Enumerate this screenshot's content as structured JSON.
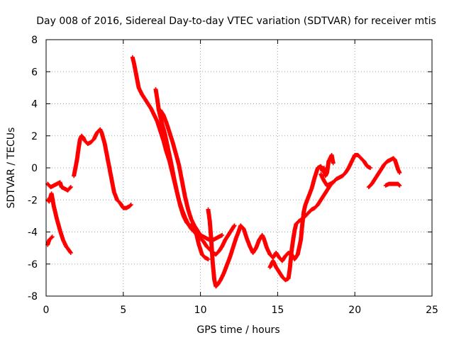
{
  "chart_data": {
    "type": "scatter",
    "title": "Day 008 of 2016, Sidereal Day-to-day VTEC variation (SDTVAR) for receiver mtis",
    "xlabel": "GPS time / hours",
    "ylabel": "SDTVAR / TECUs",
    "xlim": [
      0,
      25
    ],
    "ylim": [
      -8,
      8
    ],
    "xticks": [
      "0",
      "5",
      "10",
      "15",
      "20",
      "25"
    ],
    "yticks": [
      "-8",
      "-6",
      "-4",
      "-2",
      "0",
      "2",
      "4",
      "6",
      "8"
    ],
    "grid": true,
    "marker": "+",
    "color": "#ff0000",
    "series": [
      {
        "name": "s1",
        "points": [
          [
            0.1,
            -2.0
          ],
          [
            0.2,
            -2.1
          ],
          [
            0.35,
            -1.6
          ],
          [
            0.5,
            -2.4
          ],
          [
            0.7,
            -3.2
          ],
          [
            0.9,
            -3.9
          ],
          [
            1.1,
            -4.5
          ],
          [
            1.3,
            -4.9
          ],
          [
            1.6,
            -5.3
          ]
        ]
      },
      {
        "name": "s2",
        "points": [
          [
            0.1,
            -4.8
          ],
          [
            0.2,
            -4.5
          ],
          [
            0.4,
            -4.3
          ]
        ]
      },
      {
        "name": "s3",
        "points": [
          [
            0.1,
            -1.0
          ],
          [
            0.3,
            -1.2
          ],
          [
            0.5,
            -1.1
          ],
          [
            0.7,
            -1.0
          ],
          [
            0.9,
            -0.9
          ],
          [
            1.0,
            -1.2
          ],
          [
            1.2,
            -1.3
          ],
          [
            1.4,
            -1.4
          ],
          [
            1.6,
            -1.2
          ]
        ]
      },
      {
        "name": "s4",
        "points": [
          [
            1.8,
            -0.5
          ],
          [
            1.9,
            0.0
          ],
          [
            2.0,
            0.5
          ],
          [
            2.1,
            1.2
          ],
          [
            2.2,
            1.8
          ],
          [
            2.3,
            2.0
          ],
          [
            2.4,
            1.9
          ],
          [
            2.5,
            1.7
          ],
          [
            2.7,
            1.5
          ],
          [
            2.9,
            1.6
          ],
          [
            3.1,
            1.8
          ],
          [
            3.3,
            2.2
          ],
          [
            3.5,
            2.4
          ],
          [
            3.6,
            2.2
          ],
          [
            3.8,
            1.5
          ],
          [
            4.0,
            0.5
          ],
          [
            4.2,
            -0.5
          ],
          [
            4.4,
            -1.5
          ],
          [
            4.6,
            -2.0
          ],
          [
            4.8,
            -2.2
          ],
          [
            5.0,
            -2.5
          ],
          [
            5.2,
            -2.5
          ],
          [
            5.4,
            -2.4
          ],
          [
            5.5,
            -2.3
          ]
        ]
      },
      {
        "name": "s5",
        "points": [
          [
            5.6,
            6.9
          ],
          [
            5.7,
            6.5
          ],
          [
            5.8,
            6.0
          ],
          [
            5.9,
            5.5
          ],
          [
            6.0,
            5.0
          ],
          [
            6.2,
            4.6
          ],
          [
            6.4,
            4.3
          ],
          [
            6.6,
            4.0
          ],
          [
            6.8,
            3.7
          ],
          [
            7.0,
            3.3
          ],
          [
            7.2,
            2.9
          ],
          [
            7.4,
            2.3
          ],
          [
            7.6,
            1.7
          ],
          [
            7.8,
            1.0
          ],
          [
            8.0,
            0.4
          ],
          [
            8.2,
            -0.4
          ],
          [
            8.4,
            -1.2
          ],
          [
            8.6,
            -2.0
          ],
          [
            8.8,
            -2.6
          ],
          [
            9.0,
            -3.1
          ],
          [
            9.2,
            -3.5
          ],
          [
            9.4,
            -3.8
          ],
          [
            9.6,
            -4.0
          ],
          [
            9.8,
            -4.2
          ],
          [
            10.0,
            -4.4
          ],
          [
            10.2,
            -4.6
          ],
          [
            10.4,
            -4.9
          ],
          [
            10.6,
            -5.1
          ],
          [
            10.8,
            -5.3
          ],
          [
            11.0,
            -5.4
          ],
          [
            11.2,
            -5.2
          ],
          [
            11.4,
            -4.9
          ],
          [
            11.6,
            -4.5
          ],
          [
            11.8,
            -4.2
          ],
          [
            12.0,
            -3.9
          ],
          [
            12.2,
            -3.6
          ]
        ]
      },
      {
        "name": "s6",
        "points": [
          [
            7.1,
            4.9
          ],
          [
            7.2,
            4.3
          ],
          [
            7.3,
            3.6
          ],
          [
            7.5,
            2.8
          ],
          [
            7.7,
            2.1
          ],
          [
            7.9,
            1.2
          ],
          [
            8.1,
            0.3
          ],
          [
            8.3,
            -0.7
          ],
          [
            8.5,
            -1.6
          ],
          [
            8.7,
            -2.4
          ],
          [
            8.9,
            -3.0
          ],
          [
            9.1,
            -3.4
          ],
          [
            9.3,
            -3.6
          ],
          [
            9.5,
            -3.6
          ],
          [
            9.7,
            -4.0
          ],
          [
            9.9,
            -4.8
          ],
          [
            10.1,
            -5.4
          ],
          [
            10.3,
            -5.6
          ],
          [
            10.5,
            -5.7
          ]
        ]
      },
      {
        "name": "s7",
        "points": [
          [
            7.4,
            3.6
          ],
          [
            7.6,
            3.3
          ],
          [
            7.8,
            2.8
          ],
          [
            8.0,
            2.2
          ],
          [
            8.2,
            1.6
          ],
          [
            8.4,
            0.9
          ],
          [
            8.6,
            0.2
          ],
          [
            8.8,
            -0.8
          ],
          [
            9.0,
            -1.8
          ],
          [
            9.2,
            -2.6
          ],
          [
            9.4,
            -3.2
          ],
          [
            9.6,
            -3.6
          ],
          [
            9.8,
            -3.9
          ],
          [
            10.0,
            -4.2
          ],
          [
            10.2,
            -4.3
          ],
          [
            10.4,
            -4.4
          ],
          [
            10.6,
            -4.5
          ],
          [
            10.8,
            -4.5
          ],
          [
            11.0,
            -4.4
          ],
          [
            11.2,
            -4.3
          ],
          [
            11.4,
            -4.2
          ]
        ]
      },
      {
        "name": "s8",
        "points": [
          [
            10.5,
            -2.6
          ],
          [
            10.6,
            -3.3
          ],
          [
            10.7,
            -4.5
          ],
          [
            10.8,
            -6.0
          ],
          [
            10.9,
            -7.0
          ],
          [
            11.0,
            -7.4
          ],
          [
            11.1,
            -7.3
          ],
          [
            11.3,
            -7.0
          ],
          [
            11.5,
            -6.6
          ],
          [
            11.7,
            -6.1
          ],
          [
            11.9,
            -5.6
          ],
          [
            12.1,
            -5.0
          ],
          [
            12.3,
            -4.4
          ],
          [
            12.5,
            -3.9
          ],
          [
            12.6,
            -3.6
          ],
          [
            12.8,
            -3.8
          ],
          [
            13.0,
            -4.4
          ],
          [
            13.2,
            -4.9
          ],
          [
            13.4,
            -5.3
          ],
          [
            13.6,
            -5.0
          ],
          [
            13.8,
            -4.5
          ],
          [
            14.0,
            -4.2
          ],
          [
            14.1,
            -4.4
          ],
          [
            14.3,
            -5.0
          ],
          [
            14.5,
            -5.4
          ],
          [
            14.7,
            -5.6
          ],
          [
            14.9,
            -5.3
          ],
          [
            15.1,
            -5.6
          ],
          [
            15.3,
            -5.8
          ],
          [
            15.5,
            -5.5
          ],
          [
            15.7,
            -5.3
          ],
          [
            15.9,
            -5.4
          ],
          [
            16.1,
            -5.7
          ],
          [
            16.3,
            -5.4
          ],
          [
            16.5,
            -4.5
          ],
          [
            16.6,
            -3.5
          ],
          [
            16.7,
            -2.7
          ],
          [
            16.8,
            -2.3
          ],
          [
            17.0,
            -1.8
          ],
          [
            17.2,
            -1.3
          ],
          [
            17.4,
            -0.6
          ],
          [
            17.6,
            0.0
          ],
          [
            17.8,
            0.1
          ],
          [
            17.9,
            -0.2
          ],
          [
            18.0,
            0.0
          ],
          [
            18.1,
            -0.5
          ],
          [
            18.2,
            -0.3
          ],
          [
            18.3,
            0.4
          ],
          [
            18.5,
            0.8
          ],
          [
            18.6,
            0.3
          ]
        ]
      },
      {
        "name": "s9",
        "points": [
          [
            14.5,
            -6.2
          ],
          [
            14.7,
            -5.8
          ],
          [
            14.9,
            -6.2
          ],
          [
            15.1,
            -6.5
          ],
          [
            15.3,
            -6.8
          ],
          [
            15.5,
            -7.0
          ],
          [
            15.7,
            -6.9
          ],
          [
            15.8,
            -6.2
          ],
          [
            15.9,
            -5.2
          ],
          [
            16.0,
            -4.5
          ],
          [
            16.1,
            -3.9
          ],
          [
            16.2,
            -3.5
          ],
          [
            16.4,
            -3.3
          ],
          [
            16.6,
            -3.2
          ],
          [
            16.8,
            -3.0
          ],
          [
            17.0,
            -2.8
          ],
          [
            17.2,
            -2.6
          ],
          [
            17.4,
            -2.5
          ],
          [
            17.6,
            -2.3
          ],
          [
            17.8,
            -2.0
          ],
          [
            18.0,
            -1.7
          ],
          [
            18.2,
            -1.4
          ],
          [
            18.4,
            -1.1
          ],
          [
            18.6,
            -0.9
          ],
          [
            18.8,
            -0.7
          ],
          [
            19.0,
            -0.6
          ],
          [
            19.2,
            -0.5
          ],
          [
            19.4,
            -0.3
          ],
          [
            19.6,
            0.0
          ],
          [
            19.8,
            0.4
          ],
          [
            20.0,
            0.8
          ],
          [
            20.2,
            0.8
          ],
          [
            20.4,
            0.6
          ],
          [
            20.6,
            0.4
          ],
          [
            20.8,
            0.1
          ],
          [
            21.0,
            0.0
          ]
        ]
      },
      {
        "name": "s10",
        "points": [
          [
            17.8,
            -0.4
          ],
          [
            18.0,
            -0.8
          ],
          [
            18.2,
            -1.1
          ],
          [
            18.4,
            -1.0
          ],
          [
            18.6,
            -0.9
          ]
        ]
      },
      {
        "name": "s11",
        "points": [
          [
            20.9,
            -1.2
          ],
          [
            21.1,
            -1.0
          ],
          [
            21.3,
            -0.7
          ],
          [
            21.5,
            -0.4
          ],
          [
            21.7,
            -0.1
          ],
          [
            21.9,
            0.2
          ],
          [
            22.1,
            0.4
          ],
          [
            22.3,
            0.5
          ],
          [
            22.5,
            0.6
          ],
          [
            22.6,
            0.5
          ],
          [
            22.7,
            0.2
          ],
          [
            22.8,
            -0.1
          ],
          [
            22.9,
            -0.3
          ]
        ]
      },
      {
        "name": "s12",
        "points": [
          [
            22.0,
            -1.1
          ],
          [
            22.2,
            -1.0
          ],
          [
            22.4,
            -1.0
          ],
          [
            22.6,
            -1.0
          ],
          [
            22.8,
            -1.0
          ],
          [
            22.9,
            -1.1
          ]
        ]
      }
    ]
  }
}
